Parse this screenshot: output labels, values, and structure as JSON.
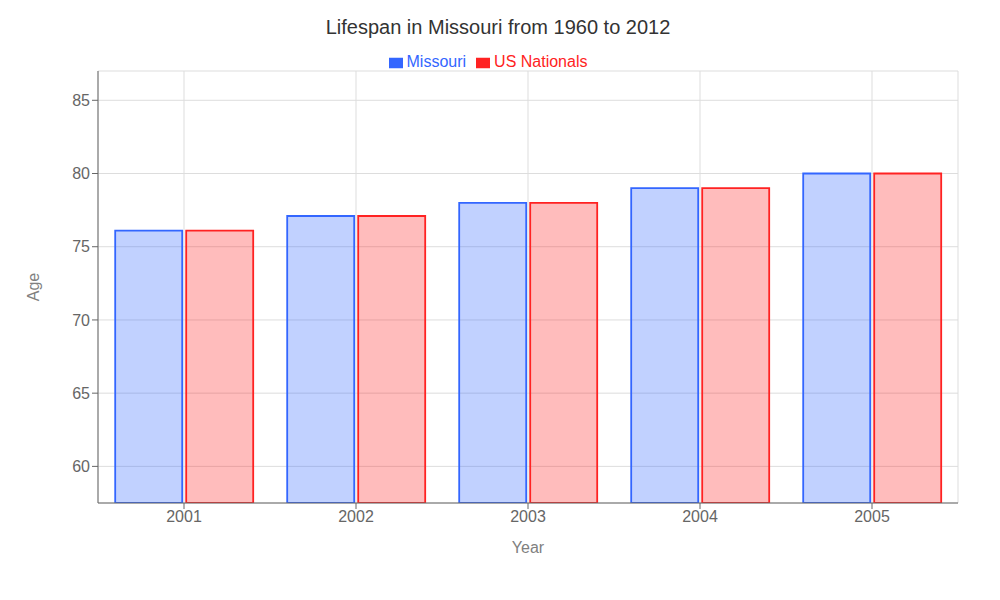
{
  "chart_data": {
    "type": "bar",
    "title": "Lifespan in Missouri from 1960 to 2012",
    "x_label": "Year",
    "y_label": "Age",
    "categories": [
      "2001",
      "2002",
      "2003",
      "2004",
      "2005"
    ],
    "series": [
      {
        "name": "Missouri",
        "color": "#3366ff",
        "values": [
          76.1,
          77.1,
          78.0,
          79.0,
          80.0
        ]
      },
      {
        "name": "US Nationals",
        "color": "#ff2222",
        "values": [
          76.1,
          77.1,
          78.0,
          79.0,
          80.0
        ]
      }
    ],
    "ylim": [
      57.5,
      87
    ],
    "yticks": [
      60,
      65,
      70,
      75,
      80,
      85
    ],
    "grid": true,
    "legend": "top"
  }
}
